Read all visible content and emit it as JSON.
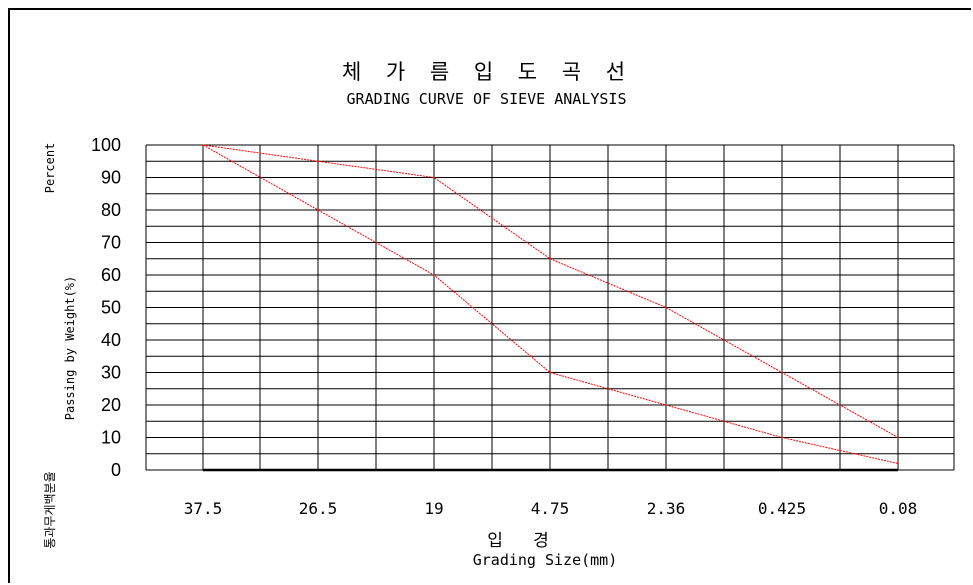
{
  "chart_data": {
    "type": "line",
    "title": "체 가 름 입 도 곡 선",
    "subtitle": "GRADING CURVE OF SIEVE ANALYSIS",
    "xlabel": "입 경",
    "xlabel_en": "Grading Size(mm)",
    "ylabel_top": "Percent",
    "ylabel": "Passing by Weight(%)",
    "ylabel_ko": "통과무게백분율",
    "categories": [
      "37.5",
      "26.5",
      "19",
      "4.75",
      "2.36",
      "0.425",
      "0.08"
    ],
    "yticks": [
      "100",
      "90",
      "80",
      "70",
      "60",
      "50",
      "40",
      "30",
      "20",
      "10",
      "0"
    ],
    "ylim": [
      0,
      100
    ],
    "grid": true,
    "series": [
      {
        "values": [
          100,
          95,
          90,
          65,
          50,
          30,
          10
        ],
        "color": "#ff0000"
      },
      {
        "values": [
          100,
          80,
          60,
          30,
          20,
          10,
          2
        ],
        "color": "#ff0000"
      }
    ]
  }
}
